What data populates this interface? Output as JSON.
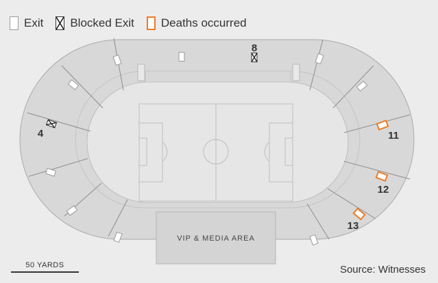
{
  "legend": {
    "exit": "Exit",
    "blocked_exit": "Blocked Exit",
    "deaths": "Deaths occurred"
  },
  "area_label": "VIP & MEDIA AREA",
  "gate_labels": {
    "g4": "4",
    "g8": "8",
    "g11": "11",
    "g12": "12",
    "g13": "13"
  },
  "scale_label": "50 YARDS",
  "source": "Source: Witnesses",
  "colors": {
    "background": "#ececec",
    "stand": "#d7d7d7",
    "field": "#e5e5e5",
    "lines": "#b0b0b0",
    "death_outline": "#ee7a22"
  }
}
